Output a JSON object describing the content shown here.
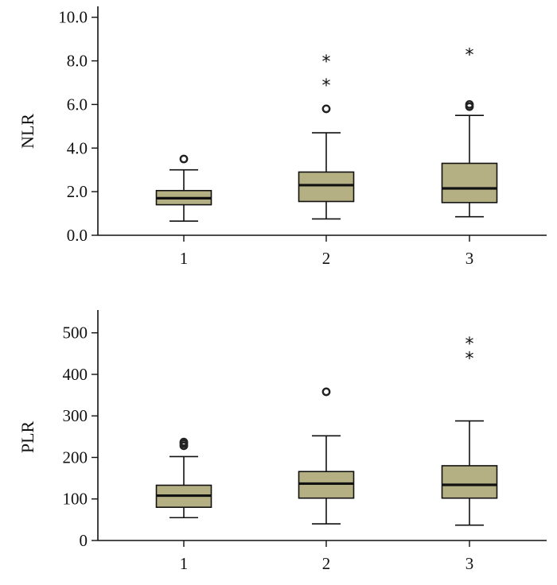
{
  "colors": {
    "box_fill": "#b5b083",
    "line": "#111111"
  },
  "chart_data": [
    {
      "type": "box",
      "ylabel": "NLR",
      "xlabel": "",
      "ylim": [
        0,
        10.5
      ],
      "yticks": [
        0,
        2,
        4,
        6,
        8,
        10
      ],
      "ytick_labels": [
        "0.0",
        "2.0",
        "4.0",
        "6.0",
        "8.0",
        "10.0"
      ],
      "categories": [
        "1",
        "2",
        "3"
      ],
      "boxes": [
        {
          "category": "1",
          "whisker_low": 0.65,
          "q1": 1.4,
          "median": 1.7,
          "q3": 2.05,
          "whisker_high": 3.0,
          "outliers": [
            3.5
          ],
          "extremes": []
        },
        {
          "category": "2",
          "whisker_low": 0.75,
          "q1": 1.55,
          "median": 2.3,
          "q3": 2.9,
          "whisker_high": 4.7,
          "outliers": [
            5.8
          ],
          "extremes": [
            7.0,
            8.1
          ]
        },
        {
          "category": "3",
          "whisker_low": 0.85,
          "q1": 1.5,
          "median": 2.15,
          "q3": 3.3,
          "whisker_high": 5.5,
          "outliers": [
            5.9,
            6.0
          ],
          "extremes": [
            8.4
          ]
        }
      ]
    },
    {
      "type": "box",
      "ylabel": "PLR",
      "xlabel": "",
      "ylim": [
        0,
        555
      ],
      "yticks": [
        0,
        100,
        200,
        300,
        400,
        500
      ],
      "ytick_labels": [
        "0",
        "100",
        "200",
        "300",
        "400",
        "500"
      ],
      "categories": [
        "1",
        "2",
        "3"
      ],
      "boxes": [
        {
          "category": "1",
          "whisker_low": 55,
          "q1": 80,
          "median": 108,
          "q3": 133,
          "whisker_high": 202,
          "outliers": [
            228,
            233,
            237
          ],
          "extremes": []
        },
        {
          "category": "2",
          "whisker_low": 40,
          "q1": 102,
          "median": 137,
          "q3": 166,
          "whisker_high": 252,
          "outliers": [
            358
          ],
          "extremes": []
        },
        {
          "category": "3",
          "whisker_low": 37,
          "q1": 102,
          "median": 134,
          "q3": 180,
          "whisker_high": 288,
          "outliers": [],
          "extremes": [
            445,
            480
          ]
        }
      ]
    }
  ]
}
